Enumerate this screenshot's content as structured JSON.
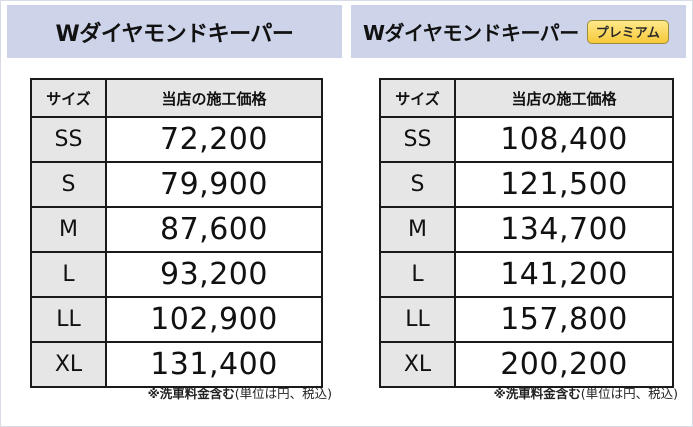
{
  "panels": [
    {
      "title": "Wダイヤモンドキーパー",
      "badge": "",
      "headers": {
        "size": "サイズ",
        "price": "当店の施工価格"
      },
      "rows": [
        {
          "size": "SS",
          "price": "72,200"
        },
        {
          "size": "S",
          "price": "79,900"
        },
        {
          "size": "M",
          "price": "87,600"
        },
        {
          "size": "L",
          "price": "93,200"
        },
        {
          "size": "LL",
          "price": "102,900"
        },
        {
          "size": "XL",
          "price": "131,400"
        }
      ],
      "note": {
        "strong": "※洗車料金含む",
        "rest": "(単位は円、税込)"
      }
    },
    {
      "title": "Wダイヤモンドキーパー",
      "badge": "プレミアム",
      "headers": {
        "size": "サイズ",
        "price": "当店の施工価格"
      },
      "rows": [
        {
          "size": "SS",
          "price": "108,400"
        },
        {
          "size": "S",
          "price": "121,500"
        },
        {
          "size": "M",
          "price": "134,700"
        },
        {
          "size": "L",
          "price": "141,200"
        },
        {
          "size": "LL",
          "price": "157,800"
        },
        {
          "size": "XL",
          "price": "200,200"
        }
      ],
      "note": {
        "strong": "※洗車料金含む",
        "rest": "(単位は円、税込)"
      }
    }
  ],
  "colors": {
    "header_bg": "#cdd4ea",
    "cell_grey": "#e6e6e6",
    "badge_gold": "#f6c93a",
    "border": "#1a1a1a"
  }
}
